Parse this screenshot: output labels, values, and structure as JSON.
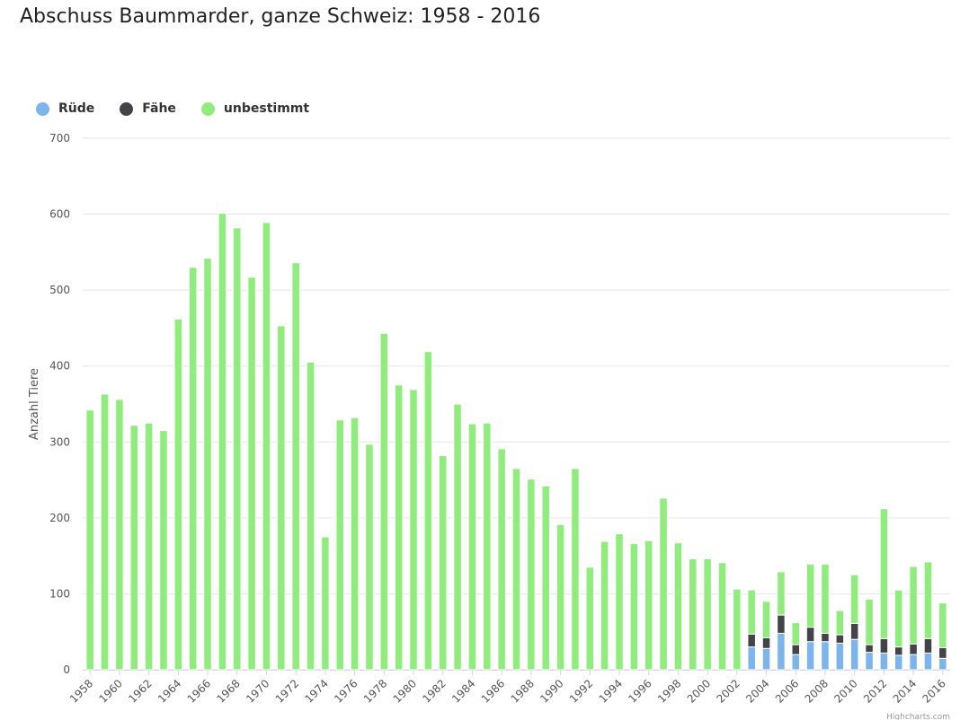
{
  "chart_data": {
    "type": "bar",
    "stacked": true,
    "title": "Abschuss Baummarder, ganze Schweiz: 1958 - 2016",
    "ylabel": "Anzahl Tiere",
    "ylim": [
      0,
      700
    ],
    "yticks": [
      0,
      100,
      200,
      300,
      400,
      500,
      600,
      700
    ],
    "grid": true,
    "legend_position": "top-left",
    "credit": "Highcharts.com",
    "categories": [
      "1958",
      "1959",
      "1960",
      "1961",
      "1962",
      "1963",
      "1964",
      "1965",
      "1966",
      "1967",
      "1968",
      "1969",
      "1970",
      "1971",
      "1972",
      "1973",
      "1974",
      "1975",
      "1976",
      "1977",
      "1978",
      "1979",
      "1980",
      "1981",
      "1982",
      "1983",
      "1984",
      "1985",
      "1986",
      "1987",
      "1988",
      "1989",
      "1990",
      "1991",
      "1992",
      "1993",
      "1994",
      "1995",
      "1996",
      "1997",
      "1998",
      "1999",
      "2000",
      "2001",
      "2002",
      "2003",
      "2004",
      "2005",
      "2006",
      "2007",
      "2008",
      "2009",
      "2010",
      "2011",
      "2012",
      "2013",
      "2014",
      "2015",
      "2016"
    ],
    "series": [
      {
        "name": "Rüde",
        "color": "#7cb5ec",
        "values": [
          0,
          0,
          0,
          0,
          0,
          0,
          0,
          0,
          0,
          0,
          0,
          0,
          0,
          0,
          0,
          0,
          0,
          0,
          0,
          0,
          0,
          0,
          0,
          0,
          0,
          0,
          0,
          0,
          0,
          0,
          0,
          0,
          0,
          0,
          0,
          0,
          0,
          0,
          0,
          0,
          0,
          0,
          0,
          0,
          0,
          30,
          28,
          48,
          20,
          37,
          37,
          35,
          40,
          23,
          22,
          19,
          20,
          22,
          15
        ]
      },
      {
        "name": "Fähe",
        "color": "#434348",
        "values": [
          0,
          0,
          0,
          0,
          0,
          0,
          0,
          0,
          0,
          0,
          0,
          0,
          0,
          0,
          0,
          0,
          0,
          0,
          0,
          0,
          0,
          0,
          0,
          0,
          0,
          0,
          0,
          0,
          0,
          0,
          0,
          0,
          0,
          0,
          0,
          0,
          0,
          0,
          0,
          0,
          0,
          0,
          0,
          0,
          0,
          17,
          14,
          24,
          13,
          19,
          11,
          11,
          21,
          10,
          19,
          11,
          14,
          19,
          14
        ]
      },
      {
        "name": "unbestimmt",
        "color": "#90ed7d",
        "values": [
          342,
          363,
          356,
          322,
          325,
          315,
          462,
          530,
          542,
          601,
          582,
          517,
          589,
          453,
          536,
          405,
          175,
          329,
          332,
          297,
          443,
          375,
          369,
          419,
          282,
          350,
          324,
          325,
          291,
          265,
          251,
          242,
          191,
          265,
          135,
          169,
          179,
          166,
          170,
          226,
          167,
          146,
          146,
          141,
          106,
          58,
          48,
          57,
          29,
          83,
          91,
          32,
          64,
          60,
          171,
          75,
          102,
          101,
          59
        ]
      }
    ]
  }
}
